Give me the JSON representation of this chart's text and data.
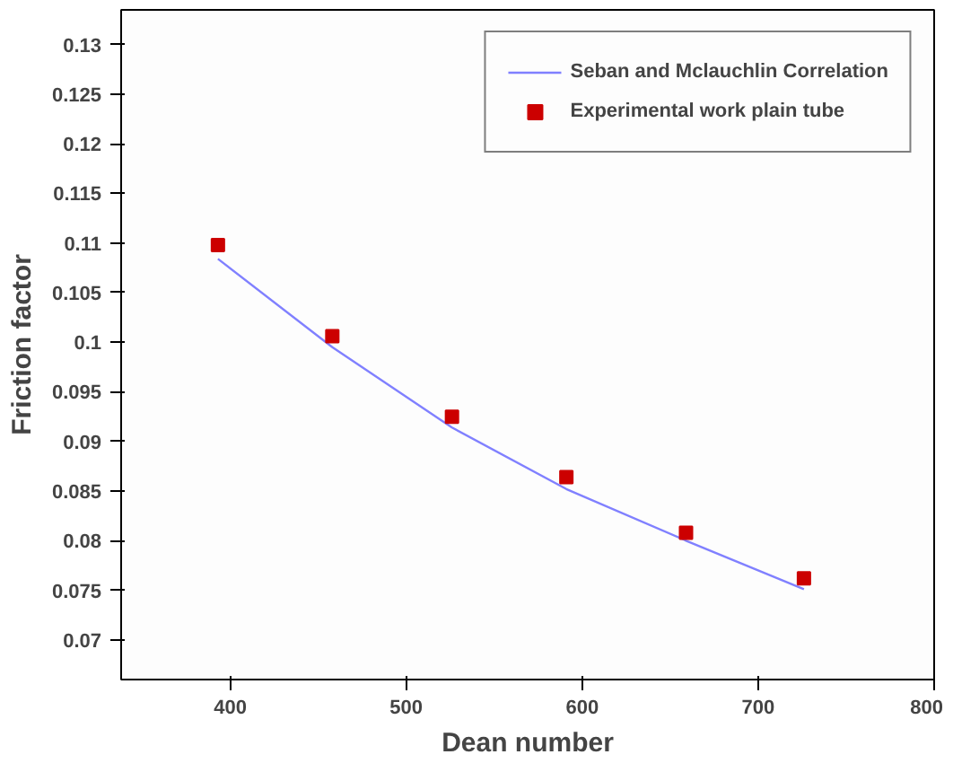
{
  "chart_data": {
    "type": "scatter",
    "xlabel": "Dean number",
    "ylabel": "Friction factor",
    "xlim": [
      338,
      800
    ],
    "ylim": [
      0.066,
      0.1335
    ],
    "xticks": [
      400,
      500,
      600,
      700,
      800
    ],
    "yticks": [
      0.07,
      0.075,
      0.08,
      0.085,
      0.09,
      0.095,
      0.1,
      0.105,
      0.11,
      0.115,
      0.12,
      0.125,
      0.13
    ],
    "grid": false,
    "legend": "top right",
    "series": [
      {
        "name": "Seban and Mclauchlin Correlation",
        "type": "line",
        "color": "#8080ff",
        "marker": "none",
        "line_style": "solid",
        "x": [
          393,
          458,
          526,
          591,
          659,
          726
        ],
        "values": [
          0.1084,
          0.0995,
          0.0914,
          0.0852,
          0.08,
          0.0751
        ]
      },
      {
        "name": "Experimental work plain tube",
        "type": "scatter",
        "color": "#cc0000",
        "marker": "square",
        "x": [
          393,
          458,
          526,
          591,
          659,
          726
        ],
        "values": [
          0.1098,
          0.1006,
          0.0925,
          0.0864,
          0.0808,
          0.0762
        ]
      }
    ]
  }
}
